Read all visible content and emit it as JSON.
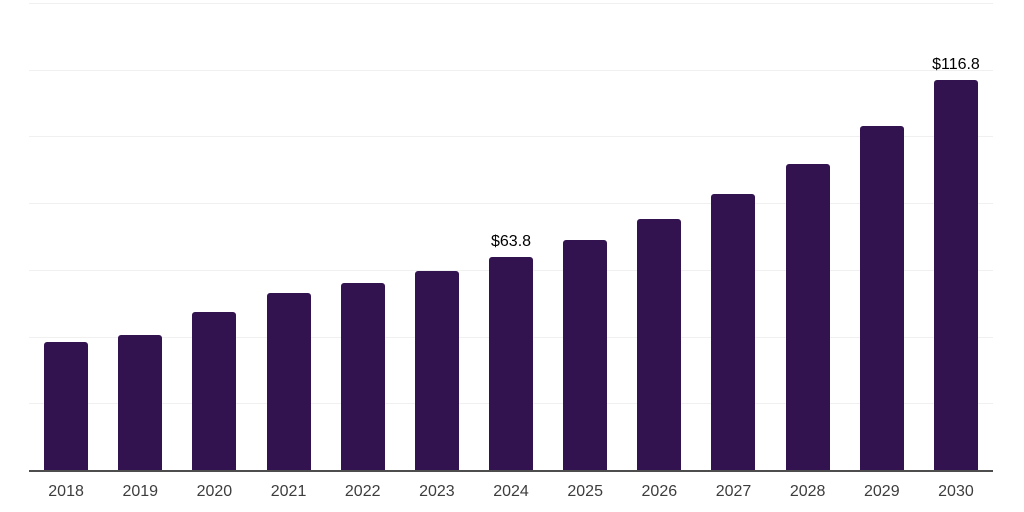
{
  "chart_data": {
    "type": "bar",
    "categories": [
      "2018",
      "2019",
      "2020",
      "2021",
      "2022",
      "2023",
      "2024",
      "2025",
      "2026",
      "2027",
      "2028",
      "2029",
      "2030"
    ],
    "values": [
      38.4,
      40.5,
      47.5,
      53.1,
      56.1,
      59.7,
      63.8,
      69.0,
      75.3,
      82.6,
      91.8,
      103.0,
      116.8
    ],
    "annotations": [
      {
        "category": "2024",
        "text": "$63.8"
      },
      {
        "category": "2030",
        "text": "$116.8"
      }
    ],
    "ylim": [
      0,
      140
    ],
    "gridline_step": 20,
    "grid": true,
    "legend": false,
    "colors": {
      "bar": "#321350",
      "gridline": "#f0f0f0",
      "axis_line": "#4d4d4d",
      "tick_label": "#3d3d3d",
      "data_label": "#000000"
    }
  }
}
